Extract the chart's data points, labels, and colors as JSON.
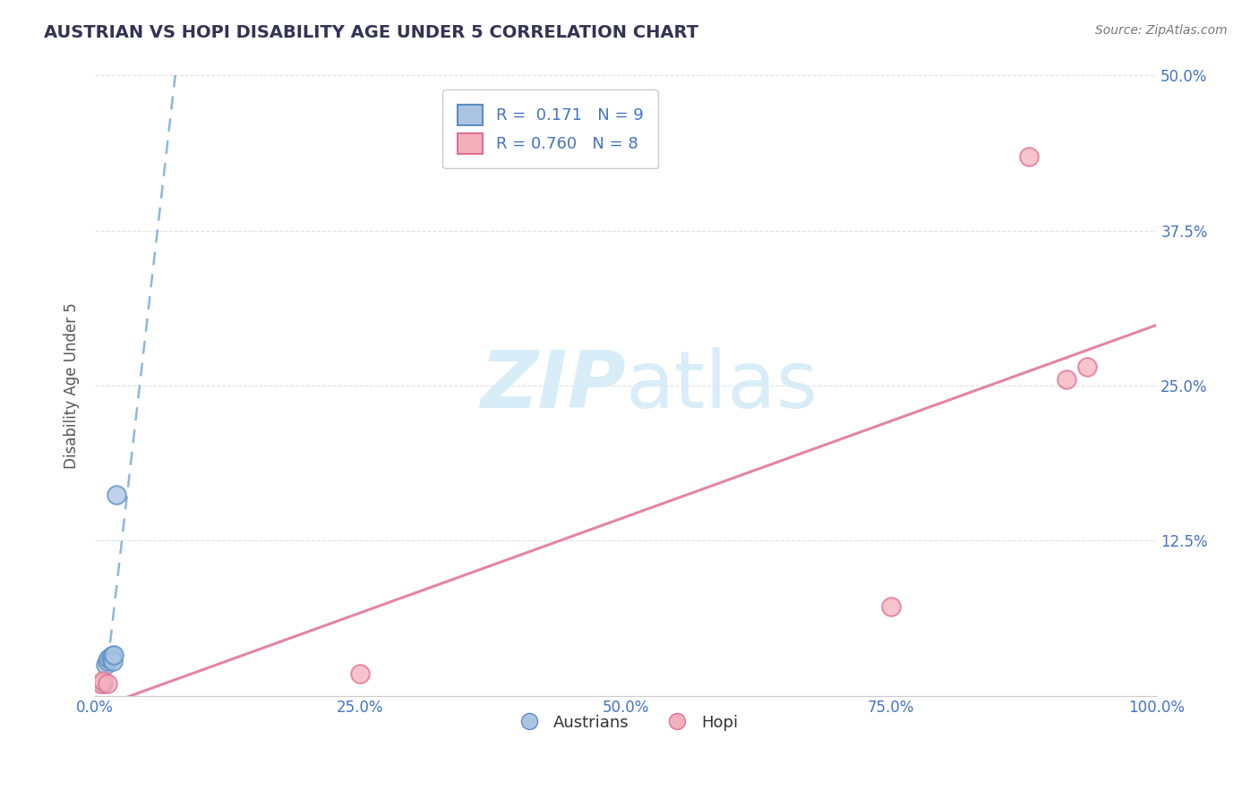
{
  "title": "AUSTRIAN VS HOPI DISABILITY AGE UNDER 5 CORRELATION CHART",
  "source": "Source: ZipAtlas.com",
  "ylabel": "Disability Age Under 5",
  "xlim": [
    0.0,
    1.0
  ],
  "ylim": [
    0.0,
    0.5
  ],
  "yticks": [
    0.0,
    0.125,
    0.25,
    0.375,
    0.5
  ],
  "ytick_labels": [
    "",
    "12.5%",
    "25.0%",
    "37.5%",
    "50.0%"
  ],
  "xticks": [
    0.0,
    0.25,
    0.5,
    0.75,
    1.0
  ],
  "xtick_labels": [
    "0.0%",
    "25.0%",
    "50.0%",
    "75.0%",
    "100.0%"
  ],
  "austrians_x": [
    0.008,
    0.01,
    0.012,
    0.013,
    0.015,
    0.016,
    0.017,
    0.018,
    0.02
  ],
  "austrians_y": [
    0.01,
    0.025,
    0.028,
    0.03,
    0.03,
    0.032,
    0.028,
    0.033,
    0.162
  ],
  "hopi_x": [
    0.005,
    0.008,
    0.012,
    0.25,
    0.75,
    0.88,
    0.915,
    0.935
  ],
  "hopi_y": [
    0.01,
    0.012,
    0.01,
    0.018,
    0.072,
    0.435,
    0.255,
    0.265
  ],
  "R_austrians": 0.171,
  "N_austrians": 9,
  "R_hopi": 0.76,
  "N_hopi": 8,
  "blue_scatter_color": "#aac4e2",
  "blue_scatter_edge": "#5b8ec4",
  "pink_scatter_color": "#f5b0be",
  "pink_scatter_edge": "#e07090",
  "blue_line_color": "#7aaad4",
  "pink_line_color": "#e07898",
  "title_color": "#333355",
  "axis_tick_color": "#4472c4",
  "ylabel_color": "#555555",
  "source_color": "#777777",
  "legend_text_color": "#333333",
  "legend_value_color": "#4472c4",
  "watermark_color": "#d8edf8",
  "grid_color": "#dddddd",
  "background_color": "#ffffff",
  "bottom_legend_labels": [
    "Austrians",
    "Hopi"
  ]
}
